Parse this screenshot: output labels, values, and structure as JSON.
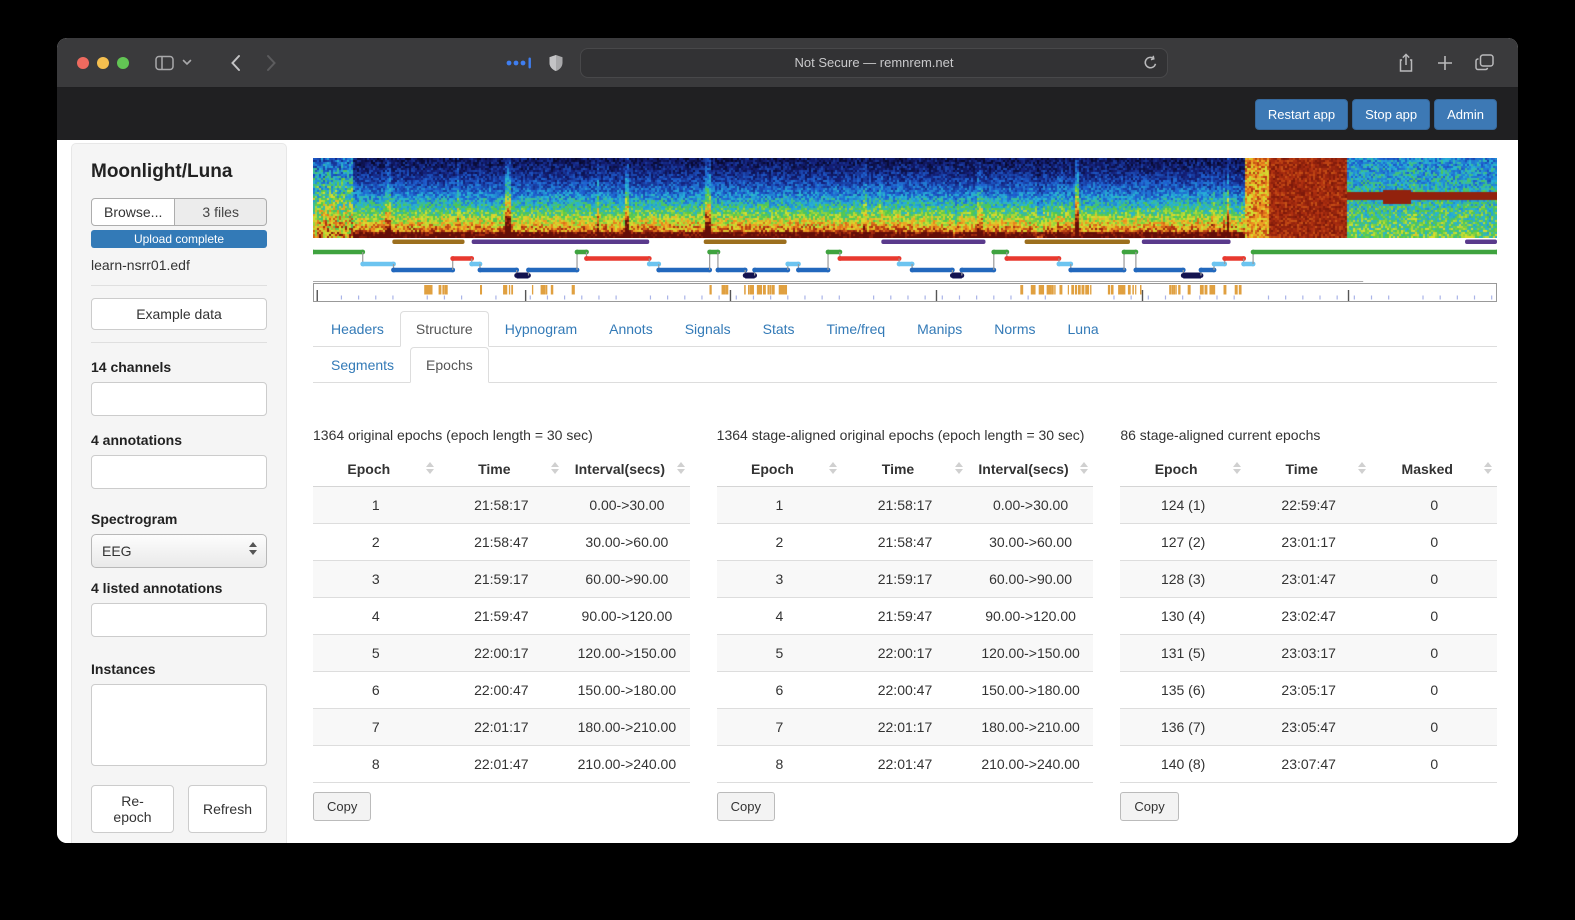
{
  "browser": {
    "url_text": "Not Secure — remnrem.net",
    "traffic_colors": [
      "#ee6a5f",
      "#f5bf4f",
      "#62c554"
    ],
    "dots_color": "#3f7ef0"
  },
  "app_header": {
    "buttons": [
      "Restart app",
      "Stop app",
      "Admin"
    ],
    "button_color": "#3d79b5"
  },
  "sidebar": {
    "title": "Moonlight/Luna",
    "browse_label": "Browse...",
    "files_label": "3 files",
    "upload_status": "Upload complete",
    "filename": "learn-nsrr01.edf",
    "example_button": "Example data",
    "channels_label": "14 channels",
    "annotations_label": "4 annotations",
    "spectrogram_label": "Spectrogram",
    "spectrogram_value": "EEG",
    "listed_annotations_label": "4 listed annotations",
    "instances_label": "Instances",
    "reepoch_button": "Re-epoch",
    "refresh_button": "Refresh"
  },
  "tabs": {
    "row1": [
      "Headers",
      "Structure",
      "Hypnogram",
      "Annots",
      "Signals",
      "Stats",
      "Time/freq",
      "Manips",
      "Norms",
      "Luna"
    ],
    "row1_active": "Structure",
    "row2": [
      "Segments",
      "Epochs"
    ],
    "row2_active": "Epochs",
    "link_color": "#337ab7"
  },
  "tables": [
    {
      "title": "1364 original epochs (epoch length = 30 sec)",
      "columns": [
        "Epoch",
        "Time",
        "Interval(secs)"
      ],
      "rows": [
        [
          "1",
          "21:58:17",
          "0.00->30.00"
        ],
        [
          "2",
          "21:58:47",
          "30.00->60.00"
        ],
        [
          "3",
          "21:59:17",
          "60.00->90.00"
        ],
        [
          "4",
          "21:59:47",
          "90.00->120.00"
        ],
        [
          "5",
          "22:00:17",
          "120.00->150.00"
        ],
        [
          "6",
          "22:00:47",
          "150.00->180.00"
        ],
        [
          "7",
          "22:01:17",
          "180.00->210.00"
        ],
        [
          "8",
          "22:01:47",
          "210.00->240.00"
        ]
      ],
      "copy_label": "Copy"
    },
    {
      "title": "1364 stage-aligned original epochs (epoch length = 30 sec)",
      "columns": [
        "Epoch",
        "Time",
        "Interval(secs)"
      ],
      "rows": [
        [
          "1",
          "21:58:17",
          "0.00->30.00"
        ],
        [
          "2",
          "21:58:47",
          "30.00->60.00"
        ],
        [
          "3",
          "21:59:17",
          "60.00->90.00"
        ],
        [
          "4",
          "21:59:47",
          "90.00->120.00"
        ],
        [
          "5",
          "22:00:17",
          "120.00->150.00"
        ],
        [
          "6",
          "22:00:47",
          "150.00->180.00"
        ],
        [
          "7",
          "22:01:17",
          "180.00->210.00"
        ],
        [
          "8",
          "22:01:47",
          "210.00->240.00"
        ]
      ],
      "copy_label": "Copy"
    },
    {
      "title": "86 stage-aligned current epochs",
      "columns": [
        "Epoch",
        "Time",
        "Masked"
      ],
      "rows": [
        [
          "124 (1)",
          "22:59:47",
          "0"
        ],
        [
          "127 (2)",
          "23:01:17",
          "0"
        ],
        [
          "128 (3)",
          "23:01:47",
          "0"
        ],
        [
          "130 (4)",
          "23:02:47",
          "0"
        ],
        [
          "131 (5)",
          "23:03:17",
          "0"
        ],
        [
          "135 (6)",
          "23:05:17",
          "0"
        ],
        [
          "136 (7)",
          "23:05:47",
          "0"
        ],
        [
          "140 (8)",
          "23:07:47",
          "0"
        ]
      ],
      "copy_label": "Copy"
    }
  ],
  "tracks": {
    "stage_colors": {
      "W": "#3fa33f",
      "R": "#e8392f",
      "N1": "#6cc4f0",
      "N2": "#2268bd",
      "N3": "#131350"
    },
    "stage_y": {
      "W": 14,
      "R": 20.5,
      "N1": 26,
      "N2": 32,
      "N3": 37.5
    },
    "hypnogram": [
      [
        0,
        4.2,
        "W"
      ],
      [
        4.2,
        6.8,
        "N1"
      ],
      [
        6.8,
        11.8,
        "N2"
      ],
      [
        11.8,
        13.4,
        "R"
      ],
      [
        13.4,
        14.1,
        "N1"
      ],
      [
        14.1,
        17.2,
        "N2"
      ],
      [
        17.2,
        18.2,
        "N3"
      ],
      [
        18.2,
        22.3,
        "N2"
      ],
      [
        22.3,
        23.1,
        "W"
      ],
      [
        23.1,
        28.4,
        "R"
      ],
      [
        28.4,
        29.2,
        "N1"
      ],
      [
        29.2,
        33.5,
        "N2"
      ],
      [
        33.5,
        34.2,
        "W"
      ],
      [
        34.2,
        36.5,
        "N2"
      ],
      [
        36.5,
        37.3,
        "N3"
      ],
      [
        37.3,
        40.1,
        "N2"
      ],
      [
        40.1,
        41,
        "N1"
      ],
      [
        41,
        43.5,
        "N2"
      ],
      [
        43.5,
        44.5,
        "W"
      ],
      [
        44.5,
        49.5,
        "R"
      ],
      [
        49.5,
        50.6,
        "N1"
      ],
      [
        50.6,
        54,
        "N2"
      ],
      [
        54,
        54.8,
        "N3"
      ],
      [
        54.8,
        57.5,
        "N2"
      ],
      [
        57.5,
        58.6,
        "W"
      ],
      [
        58.6,
        63,
        "R"
      ],
      [
        63,
        64,
        "N1"
      ],
      [
        64,
        68.5,
        "N2"
      ],
      [
        68.5,
        69.5,
        "W"
      ],
      [
        69.5,
        73.5,
        "N2"
      ],
      [
        73.5,
        75,
        "N3"
      ],
      [
        75,
        76.1,
        "N2"
      ],
      [
        76.1,
        77,
        "N1"
      ],
      [
        77,
        78.6,
        "R"
      ],
      [
        78.6,
        79.4,
        "N1"
      ],
      [
        79.4,
        100,
        "W"
      ]
    ],
    "annot_bars": [
      [
        6.7,
        12.8,
        "#9c6f1e"
      ],
      [
        13.4,
        28.4,
        "#5a3a8c"
      ],
      [
        33,
        40,
        "#9c6f1e"
      ],
      [
        48,
        56.8,
        "#5a3a8c"
      ],
      [
        60.1,
        69,
        "#9c6f1e"
      ],
      [
        70,
        77.5,
        "#5a3a8c"
      ],
      [
        97.3,
        100,
        "#5a3a8c"
      ]
    ],
    "orange_clusters": [
      [
        9,
        12
      ],
      [
        13.5,
        14.2
      ],
      [
        16,
        17.1
      ],
      [
        18,
        20.5
      ],
      [
        21.4,
        22.3
      ],
      [
        33,
        40
      ],
      [
        59.7,
        66
      ],
      [
        67,
        70.5
      ],
      [
        72,
        78.3
      ]
    ],
    "orange_color": "#e0a040",
    "minor_tick_color": "#aab4e8",
    "hour_ticks": [
      0.3,
      17.9,
      35.2,
      52.6,
      70,
      87.4
    ],
    "baseline_end": 88.7
  }
}
